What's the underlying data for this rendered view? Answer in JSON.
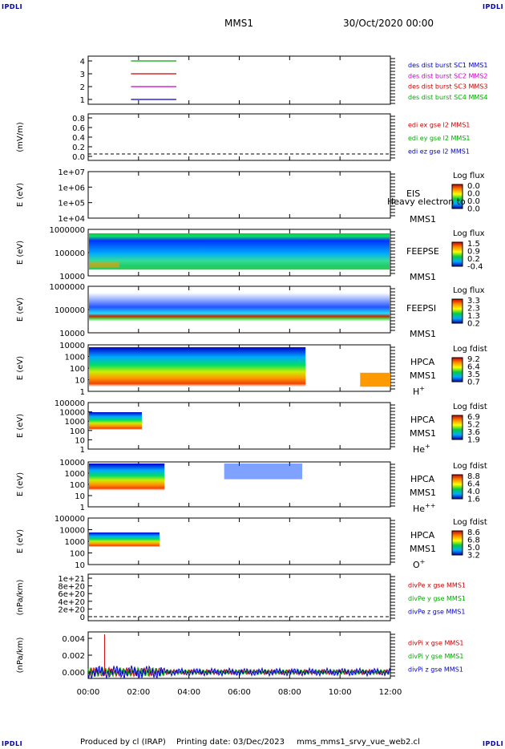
{
  "corner_label": "IPDLI",
  "header": {
    "title": "MMS1",
    "date": "30/Oct/2020 00:00"
  },
  "footer": {
    "producer": "Produced by cl (IRAP)",
    "print_date": "Printing date: 03/Dec/2023",
    "script": "mms_mms1_srvy_vue_web2.cl"
  },
  "colors": {
    "mms1": "#0000cc",
    "mms2": "#cc00cc",
    "mms3": "#cc0000",
    "mms4": "#00aa00"
  },
  "chart_data": {
    "type": "heatmap",
    "xaxis": {
      "ticks": [
        "00:00",
        "02:00",
        "04:00",
        "06:00",
        "08:00",
        "10:00",
        "12:00"
      ],
      "range_hours": [
        0,
        12
      ]
    },
    "panels": [
      {
        "id": "burst",
        "type": "line",
        "yticks": [
          "4",
          "3",
          "2",
          "1"
        ],
        "legend": [
          {
            "label": "des dist burst SC1 MMS1",
            "color": "#0000cc"
          },
          {
            "label": "des dist burst SC2 MMS2",
            "color": "#cc00cc"
          },
          {
            "label": "des dist burst SC3 MMS3",
            "color": "#cc0000"
          },
          {
            "label": "des dist burst SC4 MMS4",
            "color": "#00aa00"
          }
        ],
        "series": [
          {
            "sc": 4,
            "interval_hours": [
              1.7,
              3.5
            ]
          },
          {
            "sc": 3,
            "interval_hours": [
              1.7,
              3.5
            ]
          },
          {
            "sc": 2,
            "interval_hours": [
              1.7,
              3.5
            ]
          },
          {
            "sc": 1,
            "interval_hours": [
              1.7,
              3.5
            ]
          }
        ]
      },
      {
        "id": "edi",
        "type": "line",
        "ylabel": "(mV/m)",
        "yticks": [
          "0.8",
          "0.6",
          "0.4",
          "0.2",
          "0.0"
        ],
        "legend": [
          {
            "label": "edi ex gse l2 MMS1",
            "color": "#cc0000"
          },
          {
            "label": "edi ey gse l2 MMS1",
            "color": "#00aa00"
          },
          {
            "label": "edi ez gse l2 MMS1",
            "color": "#0000cc"
          }
        ]
      },
      {
        "id": "eis",
        "type": "heatmap",
        "ylabel": "E (eV)",
        "yticks": [
          "1e+07",
          "1e+06",
          "1e+05",
          "1e+04"
        ],
        "side_labels": [
          "EIS",
          "MMS1"
        ],
        "overlay_text": "Heavy electron to",
        "colorbar": {
          "title": "Log flux",
          "ticks": [
            "0.0",
            "0.0",
            "0.0",
            "0.0"
          ]
        }
      },
      {
        "id": "feepse",
        "type": "heatmap",
        "ylabel": "E (eV)",
        "yticks": [
          "1000000",
          "100000",
          "10000"
        ],
        "side_labels": [
          "FEEPSE",
          "MMS1"
        ],
        "colorbar": {
          "title": "Log flux",
          "ticks": [
            "1.5",
            "0.9",
            "0.2",
            "-0.4"
          ]
        }
      },
      {
        "id": "feepsi",
        "type": "heatmap",
        "ylabel": "E (eV)",
        "yticks": [
          "1000000",
          "100000",
          "10000"
        ],
        "side_labels": [
          "FEEPSI",
          "MMS1"
        ],
        "colorbar": {
          "title": "Log flux",
          "ticks": [
            "3.3",
            "2.3",
            "1.3",
            "0.2"
          ]
        }
      },
      {
        "id": "hpca_h",
        "type": "heatmap",
        "ylabel": "E (eV)",
        "yticks": [
          "10000",
          "1000",
          "100",
          "10",
          "1"
        ],
        "side_labels": [
          "HPCA",
          "MMS1"
        ],
        "species": "H",
        "species_sup": "+",
        "colorbar": {
          "title": "Log fdist",
          "ticks": [
            "9.2",
            "6.4",
            "3.5",
            "0.7"
          ]
        }
      },
      {
        "id": "hpca_he",
        "type": "heatmap",
        "ylabel": "E (eV)",
        "yticks": [
          "100000",
          "10000",
          "1000",
          "100",
          "10",
          "1"
        ],
        "side_labels": [
          "HPCA",
          "MMS1"
        ],
        "species": "He",
        "species_sup": "+",
        "colorbar": {
          "title": "Log fdist",
          "ticks": [
            "6.9",
            "5.2",
            "3.6",
            "1.9"
          ]
        }
      },
      {
        "id": "hpca_hepp",
        "type": "heatmap",
        "ylabel": "E (eV)",
        "yticks": [
          "10000",
          "1000",
          "100",
          "10",
          "1"
        ],
        "side_labels": [
          "HPCA",
          "MMS1"
        ],
        "species": "He",
        "species_sup": "++",
        "colorbar": {
          "title": "Log fdist",
          "ticks": [
            "8.8",
            "6.4",
            "4.0",
            "1.6"
          ]
        }
      },
      {
        "id": "hpca_o",
        "type": "heatmap",
        "ylabel": "E (eV)",
        "yticks": [
          "100000",
          "10000",
          "1000",
          "100",
          "10"
        ],
        "side_labels": [
          "HPCA",
          "MMS1"
        ],
        "species": "O",
        "species_sup": "+",
        "colorbar": {
          "title": "Log fdist",
          "ticks": [
            "8.6",
            "6.8",
            "5.0",
            "3.2"
          ]
        }
      },
      {
        "id": "divpe",
        "type": "line",
        "ylabel": "(nPa/km)",
        "yticks": [
          "1e+21",
          "8e+20",
          "6e+20",
          "4e+20",
          "2e+20",
          "0"
        ],
        "legend": [
          {
            "label": "divPe x gse MMS1",
            "color": "#cc0000"
          },
          {
            "label": "divPe y gse MMS1",
            "color": "#00aa00"
          },
          {
            "label": "divPe z gse MMS1",
            "color": "#0000cc"
          }
        ]
      },
      {
        "id": "divpi",
        "type": "line",
        "ylabel": "(nPa/km)",
        "yticks": [
          "0.004",
          "0.002",
          "0.000"
        ],
        "legend": [
          {
            "label": "divPi x gse MMS1",
            "color": "#cc0000"
          },
          {
            "label": "divPi y gse MMS1",
            "color": "#00aa00"
          },
          {
            "label": "divPi z gse MMS1",
            "color": "#0000cc"
          }
        ]
      }
    ]
  }
}
